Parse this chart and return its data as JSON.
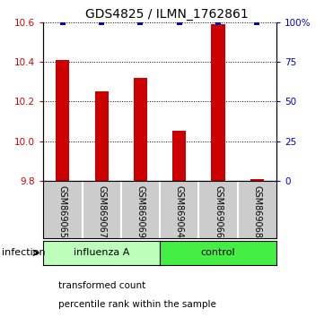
{
  "title": "GDS4825 / ILMN_1762861",
  "samples": [
    "GSM869065",
    "GSM869067",
    "GSM869069",
    "GSM869064",
    "GSM869066",
    "GSM869068"
  ],
  "red_values": [
    10.41,
    10.25,
    10.32,
    10.05,
    10.59,
    9.81
  ],
  "blue_values": [
    100,
    100,
    100,
    100,
    100,
    100
  ],
  "ylim_left": [
    9.8,
    10.6
  ],
  "ylim_right": [
    0,
    100
  ],
  "yticks_left": [
    9.8,
    10.0,
    10.2,
    10.4,
    10.6
  ],
  "yticks_right": [
    0,
    25,
    50,
    75,
    100
  ],
  "ytick_labels_right": [
    "0",
    "25",
    "50",
    "75",
    "100%"
  ],
  "groups": [
    {
      "label": "influenza A",
      "color": "#bbffbb",
      "start": 0,
      "end": 3
    },
    {
      "label": "control",
      "color": "#44ee44",
      "start": 3,
      "end": 6
    }
  ],
  "group_label": "infection",
  "bar_color": "#cc0000",
  "dot_color": "#0000cc",
  "bar_width": 0.35,
  "legend_items": [
    {
      "color": "#cc0000",
      "label": "transformed count"
    },
    {
      "color": "#0000cc",
      "label": "percentile rank within the sample"
    }
  ],
  "background_color": "#ffffff",
  "sample_box_color": "#cccccc"
}
